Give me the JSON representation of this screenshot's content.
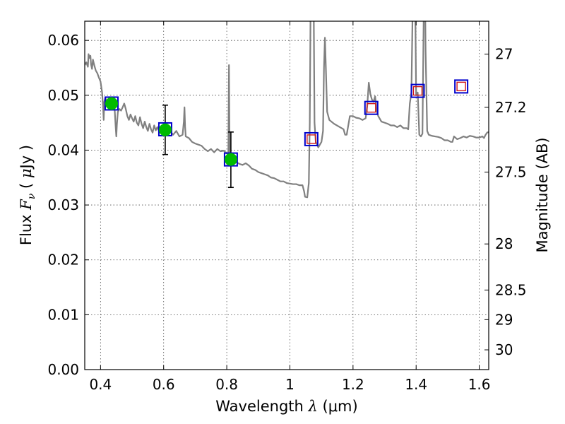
{
  "chart_data": {
    "type": "line",
    "xlabel": "Wavelength  λ (μm)",
    "xlabel_parts": {
      "text": "Wavelength  ",
      "math": "λ",
      "unit": " (μm)"
    },
    "ylabel": "Flux  F_ν  ( μJy )",
    "ylabel_parts": {
      "text": "Flux  ",
      "math": "F",
      "sub": "ν",
      "mid": "  ( ",
      "mu": "μ",
      "unit": "Jy )"
    },
    "y2label": "Magnitude (AB)",
    "xlim": [
      0.35,
      1.63
    ],
    "ylim": [
      0.0,
      0.0635
    ],
    "grid": true,
    "x_ticks": [
      {
        "value": 0.4,
        "label": "0.4"
      },
      {
        "value": 0.6,
        "label": "0.6"
      },
      {
        "value": 0.8,
        "label": "0.8"
      },
      {
        "value": 1.0,
        "label": "1"
      },
      {
        "value": 1.2,
        "label": "1.2"
      },
      {
        "value": 1.4,
        "label": "1.4"
      },
      {
        "value": 1.6,
        "label": "1.6"
      }
    ],
    "y_ticks": [
      {
        "value": 0.0,
        "label": "0.00"
      },
      {
        "value": 0.01,
        "label": "0.01"
      },
      {
        "value": 0.02,
        "label": "0.02"
      },
      {
        "value": 0.03,
        "label": "0.03"
      },
      {
        "value": 0.04,
        "label": "0.04"
      },
      {
        "value": 0.05,
        "label": "0.05"
      },
      {
        "value": 0.06,
        "label": "0.06"
      }
    ],
    "y2_ticks": [
      {
        "flux": 0.0575,
        "label": "27"
      },
      {
        "flux": 0.0478,
        "label": "27.2"
      },
      {
        "flux": 0.036,
        "label": "27.5"
      },
      {
        "flux": 0.0229,
        "label": "28"
      },
      {
        "flux": 0.0145,
        "label": "28.5"
      },
      {
        "flux": 0.0091,
        "label": "29"
      },
      {
        "flux": 0.0036,
        "label": "30"
      }
    ],
    "series": [
      {
        "kind": "model-spectrum",
        "color": "#808080",
        "points": [
          [
            0.35,
            0.0555
          ],
          [
            0.355,
            0.056
          ],
          [
            0.36,
            0.0552
          ],
          [
            0.362,
            0.0575
          ],
          [
            0.365,
            0.0568
          ],
          [
            0.368,
            0.0572
          ],
          [
            0.37,
            0.0556
          ],
          [
            0.373,
            0.0548
          ],
          [
            0.376,
            0.0565
          ],
          [
            0.38,
            0.0555
          ],
          [
            0.385,
            0.0545
          ],
          [
            0.39,
            0.054
          ],
          [
            0.395,
            0.0532
          ],
          [
            0.4,
            0.0525
          ],
          [
            0.405,
            0.0505
          ],
          [
            0.408,
            0.048
          ],
          [
            0.41,
            0.0455
          ],
          [
            0.412,
            0.0488
          ],
          [
            0.415,
            0.0495
          ],
          [
            0.42,
            0.049
          ],
          [
            0.425,
            0.0488
          ],
          [
            0.43,
            0.0482
          ],
          [
            0.435,
            0.0476
          ],
          [
            0.44,
            0.048
          ],
          [
            0.445,
            0.0472
          ],
          [
            0.448,
            0.0442
          ],
          [
            0.45,
            0.0425
          ],
          [
            0.452,
            0.0448
          ],
          [
            0.455,
            0.047
          ],
          [
            0.46,
            0.0475
          ],
          [
            0.465,
            0.0472
          ],
          [
            0.47,
            0.0478
          ],
          [
            0.475,
            0.0485
          ],
          [
            0.48,
            0.0475
          ],
          [
            0.485,
            0.0462
          ],
          [
            0.49,
            0.0455
          ],
          [
            0.495,
            0.0465
          ],
          [
            0.5,
            0.0458
          ],
          [
            0.505,
            0.0452
          ],
          [
            0.51,
            0.0462
          ],
          [
            0.515,
            0.045
          ],
          [
            0.52,
            0.0445
          ],
          [
            0.525,
            0.046
          ],
          [
            0.53,
            0.0448
          ],
          [
            0.535,
            0.044
          ],
          [
            0.54,
            0.0452
          ],
          [
            0.545,
            0.0442
          ],
          [
            0.55,
            0.0435
          ],
          [
            0.555,
            0.0448
          ],
          [
            0.56,
            0.0438
          ],
          [
            0.565,
            0.0432
          ],
          [
            0.57,
            0.0445
          ],
          [
            0.575,
            0.0436
          ],
          [
            0.58,
            0.0442
          ],
          [
            0.585,
            0.0435
          ],
          [
            0.59,
            0.0432
          ],
          [
            0.595,
            0.0436
          ],
          [
            0.6,
            0.043
          ],
          [
            0.605,
            0.0432
          ],
          [
            0.61,
            0.0428
          ],
          [
            0.62,
            0.0435
          ],
          [
            0.63,
            0.0428
          ],
          [
            0.64,
            0.0435
          ],
          [
            0.65,
            0.0425
          ],
          [
            0.66,
            0.0428
          ],
          [
            0.664,
            0.0452
          ],
          [
            0.666,
            0.0478
          ],
          [
            0.668,
            0.0442
          ],
          [
            0.67,
            0.0425
          ],
          [
            0.68,
            0.0422
          ],
          [
            0.69,
            0.0415
          ],
          [
            0.7,
            0.0412
          ],
          [
            0.71,
            0.041
          ],
          [
            0.72,
            0.0408
          ],
          [
            0.73,
            0.0402
          ],
          [
            0.74,
            0.0398
          ],
          [
            0.75,
            0.0402
          ],
          [
            0.76,
            0.0396
          ],
          [
            0.77,
            0.0402
          ],
          [
            0.78,
            0.0398
          ],
          [
            0.79,
            0.0399
          ],
          [
            0.8,
            0.0394
          ],
          [
            0.805,
            0.0392
          ],
          [
            0.807,
            0.0555
          ],
          [
            0.809,
            0.0395
          ],
          [
            0.812,
            0.0385
          ],
          [
            0.82,
            0.0382
          ],
          [
            0.83,
            0.0378
          ],
          [
            0.84,
            0.0375
          ],
          [
            0.85,
            0.0373
          ],
          [
            0.86,
            0.0376
          ],
          [
            0.87,
            0.0372
          ],
          [
            0.88,
            0.0366
          ],
          [
            0.89,
            0.0364
          ],
          [
            0.9,
            0.036
          ],
          [
            0.91,
            0.0358
          ],
          [
            0.92,
            0.0356
          ],
          [
            0.93,
            0.0354
          ],
          [
            0.94,
            0.035
          ],
          [
            0.95,
            0.0349
          ],
          [
            0.96,
            0.0346
          ],
          [
            0.97,
            0.0343
          ],
          [
            0.98,
            0.0343
          ],
          [
            0.99,
            0.034
          ],
          [
            1.0,
            0.0339
          ],
          [
            1.01,
            0.0338
          ],
          [
            1.02,
            0.0338
          ],
          [
            1.03,
            0.0336
          ],
          [
            1.04,
            0.0336
          ],
          [
            1.045,
            0.0325
          ],
          [
            1.048,
            0.0315
          ],
          [
            1.055,
            0.0314
          ],
          [
            1.06,
            0.034
          ],
          [
            1.063,
            0.045
          ],
          [
            1.066,
            0.07
          ],
          [
            1.075,
            0.07
          ],
          [
            1.078,
            0.045
          ],
          [
            1.082,
            0.0415
          ],
          [
            1.09,
            0.0405
          ],
          [
            1.1,
            0.0415
          ],
          [
            1.105,
            0.0435
          ],
          [
            1.108,
            0.055
          ],
          [
            1.111,
            0.0605
          ],
          [
            1.114,
            0.055
          ],
          [
            1.118,
            0.047
          ],
          [
            1.125,
            0.0455
          ],
          [
            1.14,
            0.0448
          ],
          [
            1.155,
            0.0443
          ],
          [
            1.17,
            0.0438
          ],
          [
            1.175,
            0.0428
          ],
          [
            1.18,
            0.0428
          ],
          [
            1.19,
            0.0462
          ],
          [
            1.2,
            0.0462
          ],
          [
            1.21,
            0.0459
          ],
          [
            1.22,
            0.0458
          ],
          [
            1.23,
            0.0455
          ],
          [
            1.24,
            0.0458
          ],
          [
            1.245,
            0.048
          ],
          [
            1.25,
            0.0523
          ],
          [
            1.255,
            0.0502
          ],
          [
            1.26,
            0.0492
          ],
          [
            1.265,
            0.0488
          ],
          [
            1.27,
            0.0498
          ],
          [
            1.275,
            0.0472
          ],
          [
            1.28,
            0.0462
          ],
          [
            1.29,
            0.0452
          ],
          [
            1.3,
            0.045
          ],
          [
            1.31,
            0.0448
          ],
          [
            1.32,
            0.0445
          ],
          [
            1.33,
            0.0445
          ],
          [
            1.34,
            0.0442
          ],
          [
            1.35,
            0.0445
          ],
          [
            1.36,
            0.044
          ],
          [
            1.37,
            0.044
          ],
          [
            1.375,
            0.0438
          ],
          [
            1.38,
            0.0485
          ],
          [
            1.385,
            0.0505
          ],
          [
            1.39,
            0.07
          ],
          [
            1.395,
            0.07
          ],
          [
            1.398,
            0.062
          ],
          [
            1.4,
            0.05
          ],
          [
            1.405,
            0.0505
          ],
          [
            1.41,
            0.0428
          ],
          [
            1.415,
            0.0425
          ],
          [
            1.42,
            0.043
          ],
          [
            1.425,
            0.07
          ],
          [
            1.428,
            0.07
          ],
          [
            1.43,
            0.058
          ],
          [
            1.435,
            0.0435
          ],
          [
            1.44,
            0.0428
          ],
          [
            1.45,
            0.0426
          ],
          [
            1.46,
            0.0425
          ],
          [
            1.47,
            0.0424
          ],
          [
            1.48,
            0.0422
          ],
          [
            1.49,
            0.0418
          ],
          [
            1.5,
            0.0418
          ],
          [
            1.51,
            0.0415
          ],
          [
            1.515,
            0.0415
          ],
          [
            1.52,
            0.0425
          ],
          [
            1.53,
            0.042
          ],
          [
            1.54,
            0.0422
          ],
          [
            1.55,
            0.0425
          ],
          [
            1.56,
            0.0423
          ],
          [
            1.57,
            0.0426
          ],
          [
            1.58,
            0.0425
          ],
          [
            1.59,
            0.0423
          ],
          [
            1.6,
            0.0423
          ],
          [
            1.61,
            0.0425
          ],
          [
            1.615,
            0.0422
          ],
          [
            1.62,
            0.0428
          ],
          [
            1.625,
            0.0432
          ],
          [
            1.63,
            0.0433
          ]
        ]
      },
      {
        "kind": "model-photometry",
        "marker": "square",
        "color": "#0000cc",
        "points": [
          [
            0.435,
            0.0485
          ],
          [
            0.605,
            0.0438
          ],
          [
            0.813,
            0.0383
          ],
          [
            1.068,
            0.042
          ],
          [
            1.258,
            0.0477
          ],
          [
            1.405,
            0.0508
          ],
          [
            1.543,
            0.0516
          ]
        ]
      },
      {
        "kind": "upper-limits",
        "marker": "square",
        "color": "#d01818",
        "points": [
          [
            1.068,
            0.042
          ],
          [
            1.258,
            0.0477
          ],
          [
            1.405,
            0.0508
          ],
          [
            1.543,
            0.0516
          ]
        ]
      },
      {
        "kind": "detections",
        "marker": "circle",
        "color": "#00bb00",
        "points": [
          [
            0.435,
            0.0485
          ],
          [
            0.605,
            0.0437
          ],
          [
            0.813,
            0.0383
          ]
        ],
        "errors": [
          null,
          [
            0.0392,
            0.0482
          ],
          [
            0.0332,
            0.0433
          ]
        ]
      }
    ]
  }
}
